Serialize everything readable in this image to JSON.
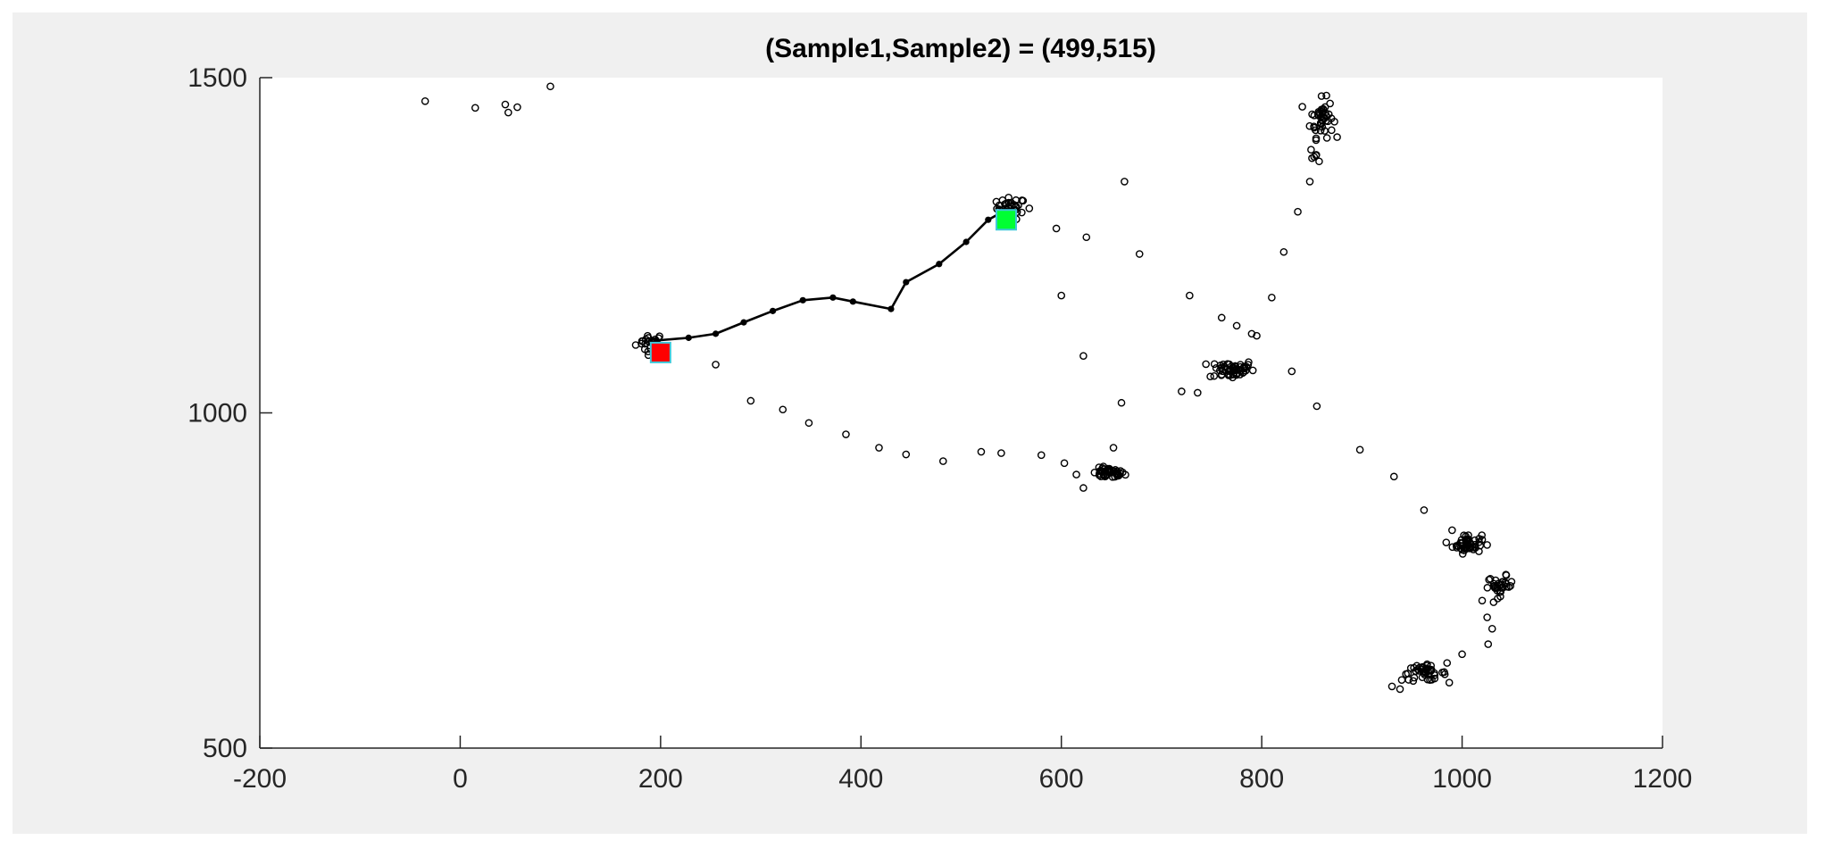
{
  "chart_data": {
    "type": "scatter",
    "title": "(Sample1,Sample2) = (499,515)",
    "xlabel": "",
    "ylabel": "",
    "xlim": [
      -200,
      1200
    ],
    "ylim": [
      500,
      1500
    ],
    "xticks": [
      -200,
      0,
      200,
      400,
      600,
      800,
      1000,
      1200
    ],
    "yticks": [
      500,
      1000,
      1500
    ],
    "x_tick_labels": [
      "-200",
      "0",
      "200",
      "400",
      "600",
      "800",
      "1000",
      "1200"
    ],
    "y_tick_labels": [
      "500",
      "1000",
      "1500"
    ],
    "grid": false,
    "legend": "none",
    "background_color": "#f0f0f0",
    "axes_color": "#ffffff",
    "marker_color": "#000000",
    "points": {
      "scattered": [
        [
          -35,
          1465
        ],
        [
          15,
          1455
        ],
        [
          45,
          1460
        ],
        [
          48,
          1448
        ],
        [
          57,
          1456
        ],
        [
          90,
          1487
        ],
        [
          255,
          1072
        ],
        [
          290,
          1018
        ],
        [
          322,
          1005
        ],
        [
          348,
          985
        ],
        [
          385,
          968
        ],
        [
          418,
          948
        ],
        [
          445,
          938
        ],
        [
          482,
          928
        ],
        [
          520,
          942
        ],
        [
          540,
          940
        ],
        [
          580,
          937
        ],
        [
          603,
          925
        ],
        [
          615,
          908
        ],
        [
          622,
          888
        ],
        [
          568,
          1305
        ],
        [
          595,
          1275
        ],
        [
          600,
          1175
        ],
        [
          625,
          1262
        ],
        [
          622,
          1085
        ],
        [
          652,
          948
        ],
        [
          660,
          1015
        ],
        [
          663,
          1345
        ],
        [
          678,
          1237
        ],
        [
          720,
          1032
        ],
        [
          728,
          1175
        ],
        [
          736,
          1030
        ],
        [
          760,
          1142
        ],
        [
          775,
          1130
        ],
        [
          790,
          1118
        ],
        [
          795,
          1115
        ],
        [
          810,
          1172
        ],
        [
          822,
          1240
        ],
        [
          830,
          1062
        ],
        [
          836,
          1300
        ],
        [
          848,
          1345
        ],
        [
          855,
          1010
        ],
        [
          898,
          945
        ],
        [
          932,
          905
        ],
        [
          962,
          855
        ],
        [
          990,
          825
        ],
        [
          1020,
          720
        ],
        [
          1025,
          695
        ],
        [
          1030,
          678
        ],
        [
          1026,
          655
        ],
        [
          1000,
          640
        ],
        [
          985,
          627
        ],
        [
          930,
          592
        ],
        [
          938,
          588
        ]
      ],
      "clusters": [
        {
          "center": [
            190,
            1105
          ],
          "spread": [
            9,
            9
          ],
          "count": 24
        },
        {
          "center": [
            550,
            1305
          ],
          "spread": [
            9,
            10
          ],
          "count": 36
        },
        {
          "center": [
            647,
            910
          ],
          "spread": [
            10,
            5
          ],
          "count": 46
        },
        {
          "center": [
            770,
            1065
          ],
          "spread": [
            14,
            9
          ],
          "count": 52
        },
        {
          "center": [
            860,
            1440
          ],
          "spread": [
            7,
            18
          ],
          "count": 44
        },
        {
          "center": [
            855,
            1385
          ],
          "spread": [
            4,
            8
          ],
          "count": 6
        },
        {
          "center": [
            1005,
            805
          ],
          "spread": [
            9,
            9
          ],
          "count": 48
        },
        {
          "center": [
            1038,
            742
          ],
          "spread": [
            8,
            9
          ],
          "count": 32
        },
        {
          "center": [
            962,
            612
          ],
          "spread": [
            14,
            7
          ],
          "count": 42
        }
      ]
    },
    "path": [
      [
        196,
        1108
      ],
      [
        228,
        1112
      ],
      [
        255,
        1118
      ],
      [
        283,
        1135
      ],
      [
        312,
        1152
      ],
      [
        342,
        1168
      ],
      [
        372,
        1172
      ],
      [
        392,
        1166
      ],
      [
        430,
        1155
      ],
      [
        445,
        1195
      ],
      [
        478,
        1222
      ],
      [
        505,
        1255
      ],
      [
        527,
        1288
      ],
      [
        544,
        1302
      ]
    ],
    "start_marker": {
      "x": 200,
      "y": 1090,
      "color": "#ff0000",
      "edge": "#40c8d8"
    },
    "end_marker": {
      "x": 545,
      "y": 1288,
      "color": "#00ff33",
      "edge": "#40c8d8"
    }
  }
}
